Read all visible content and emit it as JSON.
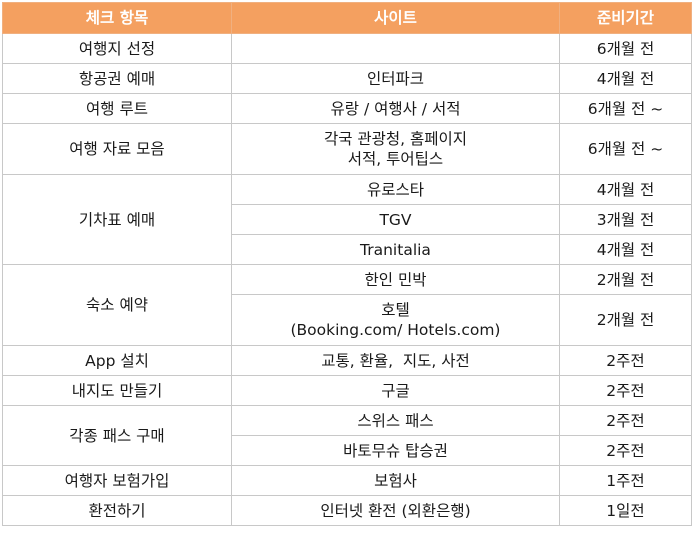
{
  "headers": [
    "체크 항목",
    "사이트",
    "준비기간"
  ],
  "rows": [
    {
      "item": "여행지 선정",
      "site": "",
      "period": "6개월 전"
    },
    {
      "item": "항공권 예매",
      "site": "인터파크",
      "period": "4개월 전"
    },
    {
      "item": "여행 루트",
      "site": "유랑 / 여행사 / 서적",
      "period": "6개월 전 ~"
    },
    {
      "item": "여행 자료 모음",
      "site_lines": [
        "각국 관광청, 홈페이지",
        "서적, 투어팁스"
      ],
      "period": "6개월 전 ~"
    },
    {
      "item": "기차표 예매",
      "subrows": [
        {
          "site": "유로스타",
          "period": "4개월 전"
        },
        {
          "site": "TGV",
          "period": "3개월 전"
        },
        {
          "site": "Tranitalia",
          "period": "4개월 전"
        }
      ]
    },
    {
      "item": "숙소 예약",
      "subrows": [
        {
          "site": "한인 민박",
          "period": "2개월 전"
        },
        {
          "site_lines": [
            "호텔",
            "(Booking.com/ Hotels.com)"
          ],
          "period": "2개월 전"
        }
      ]
    },
    {
      "item": "App 설치",
      "site": "교통, 환율,  지도, 사전",
      "period": "2주전"
    },
    {
      "item": "내지도 만들기",
      "site": "구글",
      "period": "2주전"
    },
    {
      "item": "각종 패스 구매",
      "subrows": [
        {
          "site": "스위스 패스",
          "period": "2주전"
        },
        {
          "site": "바토무슈 탑승권",
          "period": "2주전"
        }
      ]
    },
    {
      "item": "여행자 보험가입",
      "site": "보험사",
      "period": "1주전"
    },
    {
      "item": "환전하기",
      "site": "인터넷 환전 (외환은행)",
      "period": "1일전"
    }
  ],
  "colors": {
    "header_bg": "#f4a060",
    "header_text": "#ffffff",
    "highlight_text": "#2e6fb0",
    "border": "#c8c8c8"
  }
}
